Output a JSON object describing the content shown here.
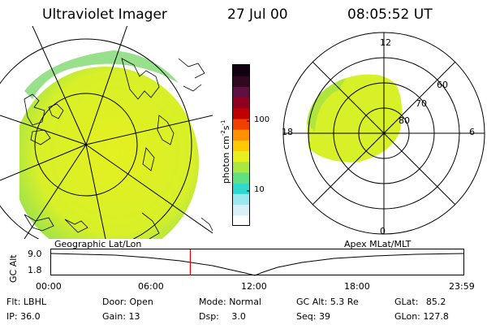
{
  "header": {
    "title": "Ultraviolet Imager",
    "date": "27 Jul 00",
    "time": "08:05:52 UT"
  },
  "colorbar": {
    "label": "photon cm",
    "label_exp1": "-2",
    "label_mid": "s",
    "label_exp2": "-1",
    "tick_high": "100",
    "tick_low": "10",
    "colors": [
      "#ffffff",
      "#d8f0f8",
      "#9ce8f0",
      "#30d8d0",
      "#60e080",
      "#a8e840",
      "#e8f020",
      "#ffc800",
      "#ff9000",
      "#f04000",
      "#c00000",
      "#900020",
      "#601040",
      "#300820",
      "#100010"
    ]
  },
  "geo_panel": {
    "label": "Geographic Lat/Lon"
  },
  "polar_panel": {
    "label": "Apex MLat/MLT",
    "mlt_labels": {
      "top": "12",
      "left": "18",
      "right": "6",
      "bottom": "0"
    },
    "lat_labels": [
      "60",
      "70",
      "80"
    ]
  },
  "timeline": {
    "axis_label": "GC Alt",
    "y_high": "9.0",
    "y_low": "1.8",
    "x_ticks": [
      "00:00",
      "06:00",
      "12:00",
      "18:00",
      "23:59"
    ],
    "marker_color": "#e00000",
    "marker_hours": 8.1
  },
  "info": {
    "filter_label": "Flt:",
    "filter_value": "LBHL",
    "ip_label": "IP:",
    "ip_value": "36.0",
    "door_label": "Door:",
    "door_value": "Open",
    "gain_label": "Gain:",
    "gain_value": "13",
    "mode_label": "Mode:",
    "mode_value": "Normal",
    "dsp_label": "Dsp:",
    "dsp_value": "3.0",
    "gcalt_label": "GC Alt:",
    "gcalt_value": "5.3 Re",
    "seq_label": "Seq:",
    "seq_value": "39",
    "glat_label": "GLat:",
    "glat_value": "85.2",
    "glon_label": "GLon:",
    "glon_value": "127.8"
  }
}
